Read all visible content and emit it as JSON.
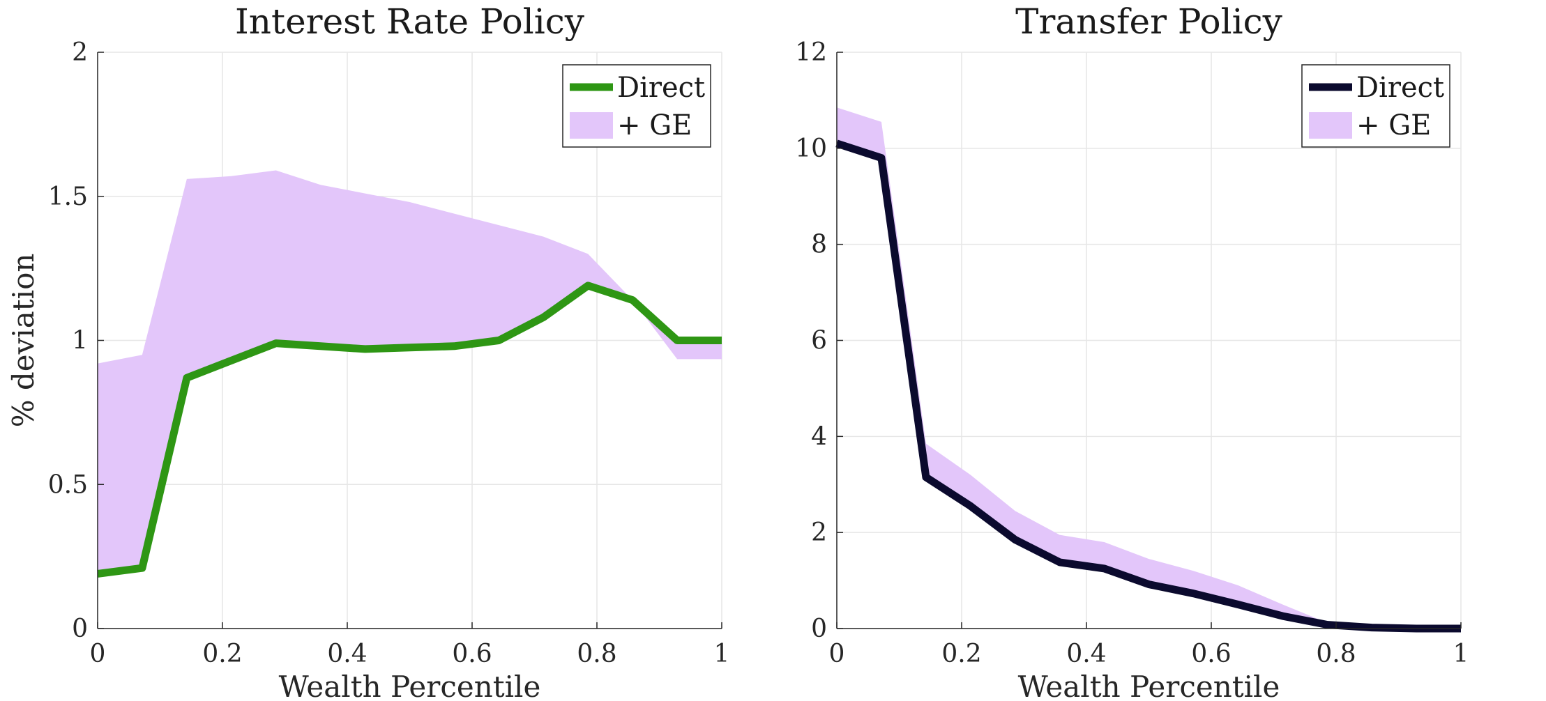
{
  "chart_data": [
    {
      "type": "line",
      "title": "Interest Rate Policy",
      "xlabel": "Wealth Percentile",
      "ylabel": "% deviation",
      "xlim": [
        0,
        1
      ],
      "ylim": [
        0,
        2
      ],
      "xticks": [
        "0",
        "0.2",
        "0.4",
        "0.6",
        "0.8",
        "1"
      ],
      "xtick_values": [
        0,
        0.2,
        0.4,
        0.6,
        0.8,
        1
      ],
      "yticks": [
        "0",
        "0.5",
        "1",
        "1.5",
        "2"
      ],
      "ytick_values": [
        0,
        0.5,
        1,
        1.5,
        2
      ],
      "grid": true,
      "legend_position": "top-right",
      "series": [
        {
          "name": "Direct",
          "kind": "line",
          "color": "#2e9614",
          "x": [
            0,
            0.0714,
            0.1429,
            0.2143,
            0.2857,
            0.3571,
            0.4286,
            0.5,
            0.5714,
            0.6429,
            0.7143,
            0.7857,
            0.8571,
            0.9286,
            1
          ],
          "y": [
            0.19,
            0.21,
            0.87,
            0.93,
            0.99,
            0.98,
            0.97,
            0.975,
            0.98,
            1.0,
            1.08,
            1.19,
            1.14,
            1.0,
            1.0
          ]
        },
        {
          "name": "+ GE",
          "kind": "band",
          "color": "#e3c6fa",
          "x": [
            0,
            0.0714,
            0.1429,
            0.2143,
            0.2857,
            0.3571,
            0.4286,
            0.5,
            0.5714,
            0.6429,
            0.7143,
            0.7857,
            0.8571,
            0.9286,
            1
          ],
          "upper": [
            0.92,
            0.95,
            1.56,
            1.57,
            1.59,
            1.54,
            1.51,
            1.48,
            1.44,
            1.4,
            1.36,
            1.3,
            1.14,
            1.0,
            1.0
          ],
          "lower": [
            0.19,
            0.21,
            0.87,
            0.93,
            0.99,
            0.98,
            0.97,
            0.975,
            0.98,
            1.0,
            1.08,
            1.19,
            1.14,
            0.935,
            0.935
          ]
        }
      ]
    },
    {
      "type": "line",
      "title": "Transfer Policy",
      "xlabel": "Wealth Percentile",
      "ylabel": "",
      "xlim": [
        0,
        1
      ],
      "ylim": [
        0,
        12
      ],
      "xticks": [
        "0",
        "0.2",
        "0.4",
        "0.6",
        "0.8",
        "1"
      ],
      "xtick_values": [
        0,
        0.2,
        0.4,
        0.6,
        0.8,
        1
      ],
      "yticks": [
        "0",
        "2",
        "4",
        "6",
        "8",
        "10",
        "12"
      ],
      "ytick_values": [
        0,
        2,
        4,
        6,
        8,
        10,
        12
      ],
      "grid": true,
      "legend_position": "top-right",
      "series": [
        {
          "name": "Direct",
          "kind": "line",
          "color": "#0b0a2e",
          "x": [
            0,
            0.0714,
            0.1429,
            0.2143,
            0.2857,
            0.3571,
            0.4286,
            0.5,
            0.5714,
            0.6429,
            0.7143,
            0.7857,
            0.8571,
            0.9286,
            1
          ],
          "y": [
            10.1,
            9.8,
            3.15,
            2.55,
            1.85,
            1.38,
            1.25,
            0.92,
            0.73,
            0.5,
            0.26,
            0.08,
            0.02,
            0.0,
            0.0
          ]
        },
        {
          "name": "+ GE",
          "kind": "band",
          "color": "#e3c6fa",
          "x": [
            0,
            0.0714,
            0.1429,
            0.2143,
            0.2857,
            0.3571,
            0.4286,
            0.5,
            0.5714,
            0.6429,
            0.7143,
            0.7857,
            0.8571,
            0.9286,
            1
          ],
          "upper": [
            10.85,
            10.55,
            3.85,
            3.2,
            2.45,
            1.95,
            1.8,
            1.45,
            1.2,
            0.9,
            0.5,
            0.12,
            0.03,
            0.0,
            0.0
          ],
          "lower": [
            10.1,
            9.8,
            3.15,
            2.55,
            1.85,
            1.38,
            1.25,
            0.92,
            0.73,
            0.5,
            0.26,
            0.08,
            0.02,
            0.0,
            0.0
          ]
        }
      ]
    }
  ]
}
